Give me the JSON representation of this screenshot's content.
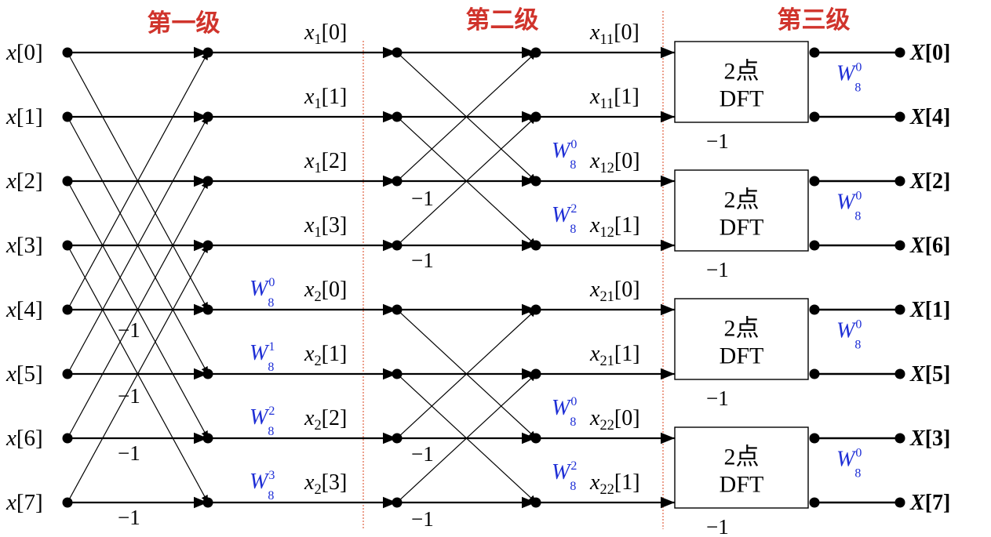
{
  "stages": [
    "第一级",
    "第二级",
    "第三级"
  ],
  "inputs": [
    {
      "var": "x",
      "idx": "[0]"
    },
    {
      "var": "x",
      "idx": "[1]"
    },
    {
      "var": "x",
      "idx": "[2]"
    },
    {
      "var": "x",
      "idx": "[3]"
    },
    {
      "var": "x",
      "idx": "[4]"
    },
    {
      "var": "x",
      "idx": "[5]"
    },
    {
      "var": "x",
      "idx": "[6]"
    },
    {
      "var": "x",
      "idx": "[7]"
    }
  ],
  "stage1_outputs": [
    {
      "var": "x",
      "sub": "1",
      "idx": "[0]"
    },
    {
      "var": "x",
      "sub": "1",
      "idx": "[1]"
    },
    {
      "var": "x",
      "sub": "1",
      "idx": "[2]"
    },
    {
      "var": "x",
      "sub": "1",
      "idx": "[3]"
    },
    {
      "var": "x",
      "sub": "2",
      "idx": "[0]"
    },
    {
      "var": "x",
      "sub": "2",
      "idx": "[1]"
    },
    {
      "var": "x",
      "sub": "2",
      "idx": "[2]"
    },
    {
      "var": "x",
      "sub": "2",
      "idx": "[3]"
    }
  ],
  "stage1_twiddles": [
    {
      "row": 4,
      "base": "W",
      "sub": "8",
      "sup": "0"
    },
    {
      "row": 5,
      "base": "W",
      "sub": "8",
      "sup": "1"
    },
    {
      "row": 6,
      "base": "W",
      "sub": "8",
      "sup": "2"
    },
    {
      "row": 7,
      "base": "W",
      "sub": "8",
      "sup": "3"
    }
  ],
  "stage1_neg": [
    "−1",
    "−1",
    "−1",
    "−1"
  ],
  "stage2_outputs": [
    {
      "var": "x",
      "sub": "11",
      "idx": "[0]"
    },
    {
      "var": "x",
      "sub": "11",
      "idx": "[1]"
    },
    {
      "var": "x",
      "sub": "12",
      "idx": "[0]"
    },
    {
      "var": "x",
      "sub": "12",
      "idx": "[1]"
    },
    {
      "var": "x",
      "sub": "21",
      "idx": "[0]"
    },
    {
      "var": "x",
      "sub": "21",
      "idx": "[1]"
    },
    {
      "var": "x",
      "sub": "22",
      "idx": "[0]"
    },
    {
      "var": "x",
      "sub": "22",
      "idx": "[1]"
    }
  ],
  "stage2_twiddles": [
    {
      "row": 2,
      "base": "W",
      "sub": "8",
      "sup": "0"
    },
    {
      "row": 3,
      "base": "W",
      "sub": "8",
      "sup": "2"
    },
    {
      "row": 6,
      "base": "W",
      "sub": "8",
      "sup": "0"
    },
    {
      "row": 7,
      "base": "W",
      "sub": "8",
      "sup": "2"
    }
  ],
  "stage2_neg": [
    "−1",
    "−1",
    "−1",
    "−1"
  ],
  "dft_blocks": [
    {
      "line1": "2点",
      "line2": "DFT",
      "twiddle": {
        "base": "W",
        "sub": "8",
        "sup": "0"
      },
      "neg": "−1"
    },
    {
      "line1": "2点",
      "line2": "DFT",
      "twiddle": {
        "base": "W",
        "sub": "8",
        "sup": "0"
      },
      "neg": "−1"
    },
    {
      "line1": "2点",
      "line2": "DFT",
      "twiddle": {
        "base": "W",
        "sub": "8",
        "sup": "0"
      },
      "neg": "−1"
    },
    {
      "line1": "2点",
      "line2": "DFT",
      "twiddle": {
        "base": "W",
        "sub": "8",
        "sup": "0"
      },
      "neg": "−1"
    }
  ],
  "outputs": [
    {
      "var": "X",
      "idx": "[0]"
    },
    {
      "var": "X",
      "idx": "[4]"
    },
    {
      "var": "X",
      "idx": "[2]"
    },
    {
      "var": "X",
      "idx": "[6]"
    },
    {
      "var": "X",
      "idx": "[1]"
    },
    {
      "var": "X",
      "idx": "[5]"
    },
    {
      "var": "X",
      "idx": "[3]"
    },
    {
      "var": "X",
      "idx": "[7]"
    }
  ],
  "colors": {
    "stage_title": "#d0342c",
    "twiddle": "#1f2fd6",
    "divider": "#e06040",
    "line": "#000000"
  }
}
